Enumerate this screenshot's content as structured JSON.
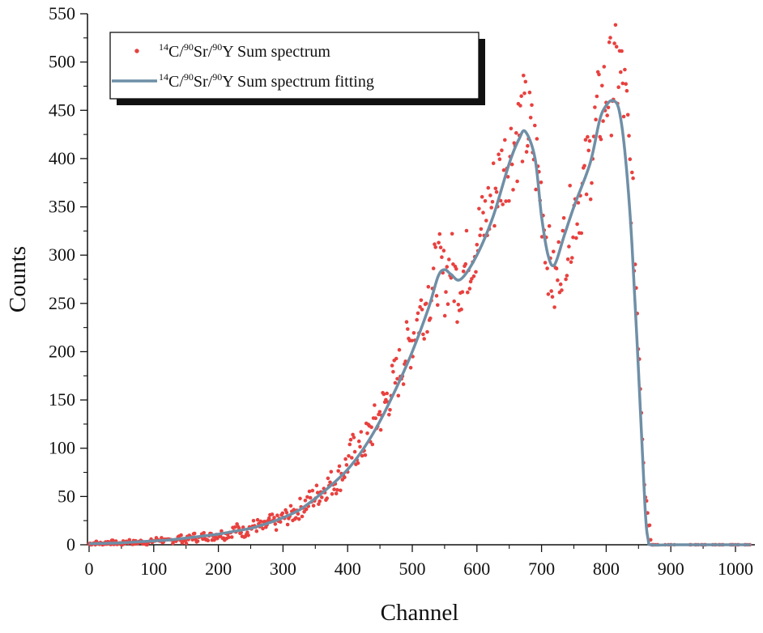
{
  "chart_data": {
    "type": "scatter",
    "xlabel": "Channel",
    "ylabel": "Counts",
    "xlim": [
      0,
      1024
    ],
    "ylim": [
      0,
      550
    ],
    "x_ticks": [
      0,
      100,
      200,
      300,
      400,
      500,
      600,
      700,
      800,
      900,
      1000
    ],
    "y_ticks": [
      0,
      50,
      100,
      150,
      200,
      250,
      300,
      350,
      400,
      450,
      500,
      550
    ],
    "x_tick_labels": [
      "0",
      "100",
      "200",
      "300",
      "400",
      "500",
      "600",
      "700",
      "800",
      "900",
      "1000"
    ],
    "y_tick_labels": [
      "0",
      "50",
      "100",
      "150",
      "200",
      "250",
      "300",
      "350",
      "400",
      "450",
      "500",
      "550"
    ],
    "grid": false,
    "legend_position": "top-left",
    "series": [
      {
        "name": "¹⁴C/⁹⁰Sr/⁹⁰Y Sum spectrum",
        "legend": {
          "sup1": "14",
          "t1": "C/",
          "sup2": "90",
          "t2": "Sr/",
          "sup3": "90",
          "t3": "Y Sum spectrum"
        },
        "type": "scatter",
        "color": "#e8413f",
        "noise_note": "points scatter around fitting curve",
        "x": [
          0,
          10,
          20,
          30,
          40,
          50,
          60,
          70,
          80,
          90,
          100,
          110,
          120,
          130,
          140,
          150,
          160,
          170,
          180,
          190,
          200,
          210,
          220,
          230,
          240,
          250,
          260,
          270,
          280,
          290,
          300,
          310,
          320,
          330,
          340,
          350,
          360,
          370,
          380,
          390,
          400,
          410,
          420,
          430,
          440,
          450,
          460,
          470,
          480,
          490,
          500,
          510,
          520,
          530,
          540,
          550,
          560,
          570,
          580,
          590,
          600,
          610,
          620,
          630,
          640,
          650,
          660,
          670,
          680,
          690,
          700,
          710,
          720,
          730,
          740,
          750,
          760,
          770,
          780,
          790,
          800,
          810,
          820,
          830,
          840,
          850,
          860,
          870,
          880,
          890,
          900,
          910,
          920,
          930,
          940,
          950,
          960,
          970,
          980,
          990,
          1000,
          1010,
          1020
        ],
        "y": [
          1,
          2,
          1,
          3,
          2,
          1,
          4,
          2,
          3,
          2,
          4,
          6,
          3,
          5,
          7,
          4,
          9,
          6,
          10,
          8,
          12,
          10,
          14,
          16,
          13,
          18,
          20,
          17,
          24,
          22,
          28,
          30,
          34,
          40,
          45,
          50,
          56,
          62,
          66,
          72,
          85,
          100,
          98,
          110,
          122,
          135,
          150,
          165,
          180,
          200,
          215,
          238,
          250,
          268,
          288,
          272,
          292,
          265,
          285,
          300,
          318,
          330,
          350,
          372,
          390,
          405,
          420,
          440,
          432,
          405,
          360,
          300,
          265,
          300,
          320,
          345,
          362,
          382,
          420,
          450,
          470,
          480,
          492,
          455,
          360,
          220,
          60,
          1,
          0,
          0,
          0,
          0,
          0,
          0,
          0,
          0,
          0,
          0,
          0,
          0,
          0,
          0,
          0
        ]
      },
      {
        "name": "¹⁴C/⁹⁰Sr/⁹⁰Y Sum spectrum fitting",
        "legend": {
          "sup1": "14",
          "t1": "C/",
          "sup2": "90",
          "t2": "Sr/",
          "sup3": "90",
          "t3": "Y Sum spectrum fitting"
        },
        "type": "line",
        "color": "#6f8fa6",
        "x": [
          0,
          25,
          50,
          75,
          100,
          125,
          150,
          175,
          200,
          225,
          250,
          275,
          300,
          325,
          350,
          375,
          400,
          425,
          450,
          475,
          500,
          525,
          540,
          550,
          560,
          575,
          600,
          625,
          650,
          665,
          675,
          690,
          700,
          710,
          720,
          735,
          750,
          775,
          790,
          800,
          810,
          820,
          830,
          840,
          850,
          860,
          865,
          870,
          900,
          950,
          1000,
          1024
        ],
        "y": [
          1,
          1.5,
          2,
          3,
          4,
          5,
          7,
          9,
          11,
          14,
          17,
          22,
          28,
          36,
          48,
          62,
          78,
          100,
          128,
          162,
          200,
          245,
          278,
          285,
          280,
          275,
          300,
          340,
          395,
          420,
          428,
          400,
          340,
          300,
          290,
          320,
          350,
          395,
          440,
          455,
          460,
          450,
          400,
          310,
          180,
          40,
          5,
          0,
          0,
          0,
          0,
          0
        ]
      }
    ]
  }
}
